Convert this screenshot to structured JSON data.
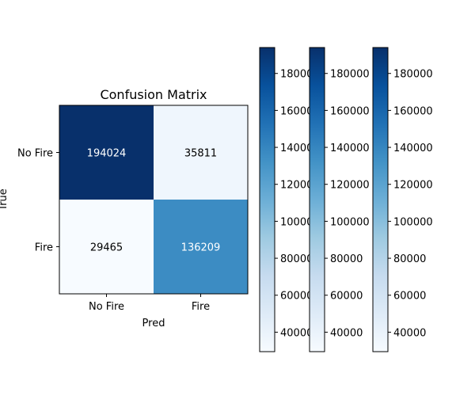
{
  "chart_data": {
    "type": "heatmap",
    "title": "Confusion Matrix",
    "xlabel": "Pred",
    "ylabel": "True",
    "x_categories": [
      "No Fire",
      "Fire"
    ],
    "y_categories": [
      "No Fire",
      "Fire"
    ],
    "values": [
      [
        194024,
        35811
      ],
      [
        29465,
        136209
      ]
    ],
    "colormap": "Blues",
    "color_range": [
      29465,
      194024
    ],
    "colorbar_count": 3,
    "colorbar_ticks": [
      40000,
      60000,
      80000,
      100000,
      120000,
      140000,
      160000,
      180000
    ]
  }
}
